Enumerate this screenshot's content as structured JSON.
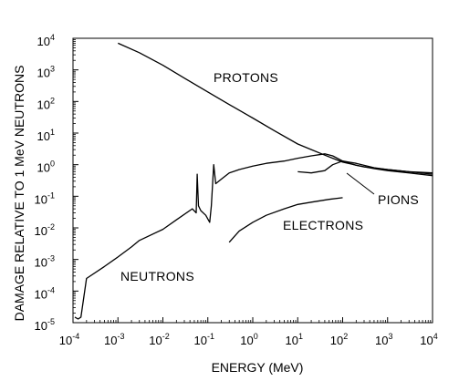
{
  "chart_data": {
    "type": "line",
    "xlabel": "ENERGY (MeV)",
    "ylabel": "DAMAGE RELATIVE TO 1 MeV NEUTRONS",
    "xscale": "log",
    "yscale": "log",
    "xlim": [
      0.0001,
      10000
    ],
    "ylim": [
      1e-05,
      10000
    ],
    "grid": false,
    "x_ticks": [
      {
        "base": "10",
        "exp": "-4"
      },
      {
        "base": "10",
        "exp": "-3"
      },
      {
        "base": "10",
        "exp": "-2"
      },
      {
        "base": "10",
        "exp": "-1"
      },
      {
        "base": "10",
        "exp": "0"
      },
      {
        "base": "10",
        "exp": "1"
      },
      {
        "base": "10",
        "exp": "2"
      },
      {
        "base": "10",
        "exp": "3"
      },
      {
        "base": "10",
        "exp": "4"
      }
    ],
    "y_ticks": [
      {
        "base": "10",
        "exp": "-5"
      },
      {
        "base": "10",
        "exp": "-4"
      },
      {
        "base": "10",
        "exp": "-3"
      },
      {
        "base": "10",
        "exp": "-2"
      },
      {
        "base": "10",
        "exp": "-1"
      },
      {
        "base": "10",
        "exp": "0"
      },
      {
        "base": "10",
        "exp": "1"
      },
      {
        "base": "10",
        "exp": "2"
      },
      {
        "base": "10",
        "exp": "3"
      },
      {
        "base": "10",
        "exp": "4"
      }
    ],
    "series": [
      {
        "name": "PROTONS",
        "x": [
          0.001,
          0.003,
          0.01,
          0.03,
          0.1,
          0.3,
          1,
          3,
          10,
          20,
          40,
          60,
          100,
          300,
          1000,
          3000,
          10000
        ],
        "y": [
          7000,
          3500,
          1400,
          550,
          200,
          80,
          30,
          12,
          4.5,
          3.0,
          2.0,
          1.6,
          1.2,
          0.85,
          0.7,
          0.6,
          0.5
        ]
      },
      {
        "name": "NEUTRONS",
        "x": [
          0.00011,
          0.00013,
          0.00015,
          0.0002,
          0.0005,
          0.001,
          0.002,
          0.003,
          0.01,
          0.02,
          0.045,
          0.055,
          0.058,
          0.062,
          0.07,
          0.09,
          0.11,
          0.12,
          0.135,
          0.15,
          0.2,
          0.3,
          0.5,
          1,
          2,
          5,
          10,
          20,
          40,
          60,
          100,
          200,
          500,
          1000,
          3000,
          10000
        ],
        "y": [
          1.5e-05,
          1.3e-05,
          1.5e-05,
          0.00025,
          0.0006,
          0.0012,
          0.0025,
          0.004,
          0.009,
          0.018,
          0.04,
          0.03,
          0.5,
          0.05,
          0.035,
          0.025,
          0.015,
          0.05,
          1.0,
          0.25,
          0.35,
          0.55,
          0.7,
          0.9,
          1.1,
          1.3,
          1.6,
          1.9,
          2.2,
          1.9,
          1.3,
          0.95,
          0.75,
          0.65,
          0.55,
          0.45
        ]
      },
      {
        "name": "PIONS",
        "x": [
          10,
          20,
          40,
          60,
          100,
          200,
          500,
          1000,
          3000,
          10000
        ],
        "y": [
          0.6,
          0.55,
          0.65,
          1.0,
          1.3,
          1.1,
          0.8,
          0.7,
          0.6,
          0.55
        ]
      },
      {
        "name": "ELECTRONS",
        "x": [
          0.3,
          0.5,
          1,
          2,
          5,
          10,
          20,
          50,
          100
        ],
        "y": [
          0.0035,
          0.008,
          0.015,
          0.025,
          0.04,
          0.055,
          0.065,
          0.08,
          0.09
        ]
      }
    ]
  }
}
